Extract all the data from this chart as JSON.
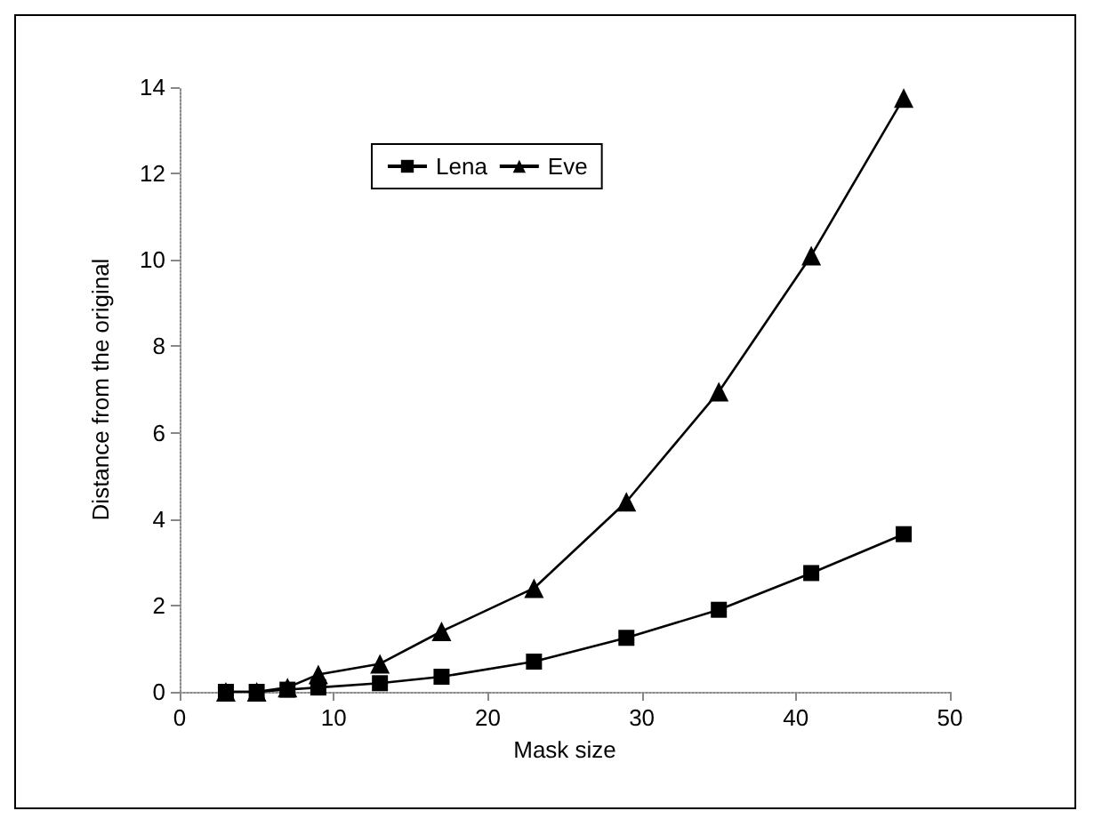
{
  "chart_data": {
    "type": "line",
    "xlabel": "Mask size",
    "ylabel": "Distance from the original",
    "x": [
      3,
      5,
      7,
      9,
      13,
      17,
      23,
      29,
      35,
      41,
      47
    ],
    "series": [
      {
        "name": "Lena",
        "color": "#000000",
        "marker": "square",
        "values": [
          0,
          0,
          0.05,
          0.1,
          0.2,
          0.35,
          0.7,
          1.25,
          1.9,
          2.75,
          3.65
        ]
      },
      {
        "name": "Eve",
        "color": "#000000",
        "marker": "triangle",
        "values": [
          0,
          0,
          0.1,
          0.4,
          0.65,
          1.4,
          2.4,
          4.4,
          6.95,
          10.1,
          13.75
        ]
      }
    ],
    "xlim": [
      0,
      50
    ],
    "xticks": [
      0,
      10,
      20,
      30,
      40,
      50
    ],
    "ylim": [
      0,
      14
    ],
    "yticks": [
      0,
      2,
      4,
      6,
      8,
      10,
      12,
      14
    ],
    "grid": false,
    "legend": "top",
    "line_style": "solid"
  }
}
